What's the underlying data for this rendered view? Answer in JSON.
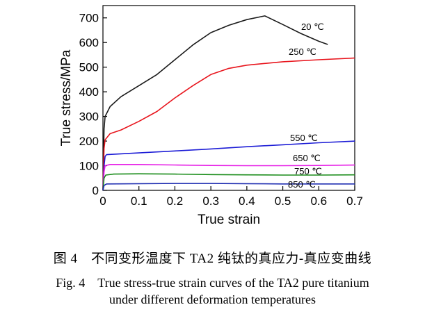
{
  "chart_data": {
    "type": "line",
    "title": "",
    "xlabel": "True strain",
    "ylabel": "True stress/MPa",
    "xlim": [
      0,
      0.7
    ],
    "ylim": [
      0,
      750
    ],
    "x_ticks": [
      "0",
      "0.1",
      "0.2",
      "0.3",
      "0.4",
      "0.5",
      "0.6",
      "0.7"
    ],
    "y_ticks": [
      "0",
      "100",
      "200",
      "300",
      "400",
      "500",
      "600",
      "700"
    ],
    "grid": false,
    "legend": "inline labels at line ends",
    "series": [
      {
        "name": "20 ℃",
        "color": "#1a1a1a",
        "points": [
          [
            0,
            0
          ],
          [
            0.003,
            250
          ],
          [
            0.006,
            300
          ],
          [
            0.02,
            340
          ],
          [
            0.05,
            380
          ],
          [
            0.1,
            425
          ],
          [
            0.15,
            470
          ],
          [
            0.2,
            530
          ],
          [
            0.25,
            590
          ],
          [
            0.3,
            640
          ],
          [
            0.35,
            670
          ],
          [
            0.4,
            693
          ],
          [
            0.45,
            708
          ],
          [
            0.5,
            673
          ],
          [
            0.55,
            637
          ],
          [
            0.6,
            605
          ],
          [
            0.625,
            592
          ]
        ]
      },
      {
        "name": "250 ℃",
        "color": "#e8141c",
        "points": [
          [
            0,
            0
          ],
          [
            0.003,
            170
          ],
          [
            0.006,
            205
          ],
          [
            0.02,
            230
          ],
          [
            0.05,
            245
          ],
          [
            0.1,
            280
          ],
          [
            0.15,
            320
          ],
          [
            0.2,
            375
          ],
          [
            0.25,
            425
          ],
          [
            0.3,
            470
          ],
          [
            0.35,
            495
          ],
          [
            0.4,
            508
          ],
          [
            0.5,
            522
          ],
          [
            0.6,
            530
          ],
          [
            0.7,
            537
          ]
        ]
      },
      {
        "name": "550 ℃",
        "color": "#1c1cd6",
        "points": [
          [
            0,
            0
          ],
          [
            0.003,
            100
          ],
          [
            0.006,
            138
          ],
          [
            0.01,
            145
          ],
          [
            0.1,
            152
          ],
          [
            0.2,
            160
          ],
          [
            0.3,
            168
          ],
          [
            0.4,
            177
          ],
          [
            0.5,
            185
          ],
          [
            0.6,
            193
          ],
          [
            0.7,
            200
          ]
        ]
      },
      {
        "name": "650 ℃",
        "color": "#e61ee6",
        "points": [
          [
            0,
            0
          ],
          [
            0.003,
            75
          ],
          [
            0.006,
            100
          ],
          [
            0.02,
            105
          ],
          [
            0.1,
            105
          ],
          [
            0.2,
            103
          ],
          [
            0.3,
            101
          ],
          [
            0.4,
            100
          ],
          [
            0.5,
            100
          ],
          [
            0.6,
            101
          ],
          [
            0.7,
            103
          ]
        ]
      },
      {
        "name": "750 ℃",
        "color": "#1a8c1a",
        "points": [
          [
            0,
            0
          ],
          [
            0.003,
            50
          ],
          [
            0.008,
            62
          ],
          [
            0.03,
            66
          ],
          [
            0.1,
            67
          ],
          [
            0.2,
            66
          ],
          [
            0.3,
            64
          ],
          [
            0.4,
            63
          ],
          [
            0.5,
            62
          ],
          [
            0.6,
            62
          ],
          [
            0.7,
            63
          ]
        ]
      },
      {
        "name": "850 ℃",
        "color": "#1c2bb0",
        "points": [
          [
            0,
            0
          ],
          [
            0.003,
            20
          ],
          [
            0.01,
            26
          ],
          [
            0.1,
            27
          ],
          [
            0.2,
            28
          ],
          [
            0.3,
            28
          ],
          [
            0.4,
            27
          ],
          [
            0.5,
            26
          ],
          [
            0.6,
            26
          ],
          [
            0.7,
            26
          ]
        ]
      }
    ]
  },
  "caption": {
    "zh": "图 4　不同变形温度下 TA2 纯钛的真应力-真应变曲线",
    "en_line1": "Fig. 4　True stress-true strain curves of the TA2 pure titanium",
    "en_line2": "under different deformation temperatures"
  }
}
